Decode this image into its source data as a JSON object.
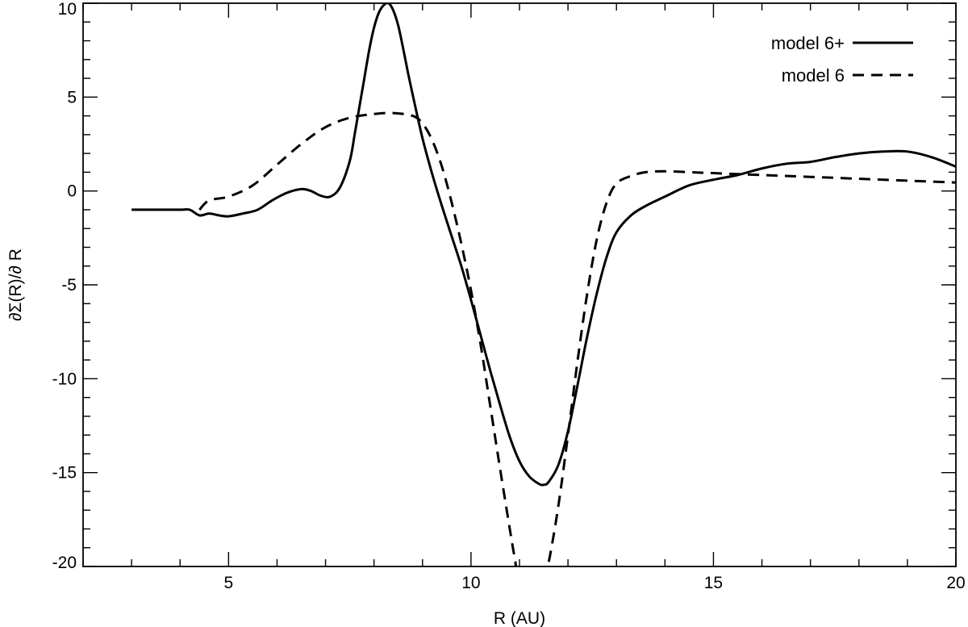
{
  "chart_data": {
    "type": "line",
    "xlabel": "R (AU)",
    "ylabel": "∂Σ(R)/∂ R",
    "xlim": [
      2,
      20
    ],
    "ylim": [
      -20,
      10
    ],
    "x_ticks": [
      5,
      10,
      15,
      20
    ],
    "y_ticks": [
      -20,
      -15,
      -10,
      -5,
      0,
      5,
      10
    ],
    "x_minor_step": 1,
    "y_minor_step": 1,
    "grid": false,
    "legend_position": "top-right",
    "series": [
      {
        "name": "model 6+",
        "style": "solid",
        "color": "#000000",
        "x": [
          3.0,
          3.5,
          4.0,
          4.2,
          4.4,
          4.6,
          4.8,
          5.0,
          5.3,
          5.6,
          5.9,
          6.2,
          6.5,
          6.7,
          6.9,
          7.1,
          7.3,
          7.5,
          7.6,
          7.7,
          7.8,
          7.9,
          8.0,
          8.1,
          8.2,
          8.3,
          8.4,
          8.5,
          8.6,
          8.7,
          8.8,
          9.0,
          9.2,
          9.4,
          9.6,
          9.8,
          10.0,
          10.2,
          10.4,
          10.6,
          10.8,
          11.0,
          11.2,
          11.4,
          11.5,
          11.6,
          11.8,
          12.0,
          12.2,
          12.4,
          12.6,
          12.8,
          13.0,
          13.3,
          13.6,
          14.0,
          14.5,
          15.0,
          15.5,
          16.0,
          16.5,
          17.0,
          17.5,
          18.0,
          18.5,
          19.0,
          19.5,
          20.0
        ],
        "y": [
          -1.0,
          -1.0,
          -1.0,
          -1.0,
          -1.3,
          -1.2,
          -1.3,
          -1.35,
          -1.2,
          -1.0,
          -0.5,
          -0.1,
          0.1,
          0.0,
          -0.25,
          -0.3,
          0.2,
          1.6,
          3.0,
          4.5,
          6.0,
          7.5,
          8.7,
          9.5,
          9.9,
          10.0,
          9.6,
          8.8,
          7.6,
          6.3,
          5.1,
          2.8,
          0.9,
          -0.8,
          -2.4,
          -4.0,
          -5.8,
          -7.7,
          -9.6,
          -11.4,
          -13.1,
          -14.4,
          -15.2,
          -15.6,
          -15.65,
          -15.5,
          -14.6,
          -12.8,
          -10.3,
          -7.7,
          -5.4,
          -3.5,
          -2.2,
          -1.3,
          -0.8,
          -0.3,
          0.3,
          0.6,
          0.85,
          1.2,
          1.45,
          1.55,
          1.8,
          2.0,
          2.1,
          2.1,
          1.8,
          1.3
        ]
      },
      {
        "name": "model 6",
        "style": "dashed",
        "color": "#000000",
        "x": [
          4.4,
          4.6,
          5.0,
          5.5,
          6.0,
          6.5,
          7.0,
          7.5,
          8.0,
          8.4,
          8.8,
          9.0,
          9.2,
          9.4,
          9.6,
          9.8,
          10.0,
          10.2,
          10.4,
          10.6,
          10.8,
          10.9,
          11.0,
          11.4,
          11.5,
          11.6,
          11.8,
          12.0,
          12.2,
          12.4,
          12.6,
          12.8,
          13.0,
          13.3,
          13.6,
          14.0,
          14.5,
          15.0,
          16.0,
          17.0,
          18.0,
          19.0,
          20.0
        ],
        "y": [
          -1.0,
          -0.5,
          -0.3,
          0.3,
          1.4,
          2.5,
          3.4,
          3.9,
          4.1,
          4.15,
          4.0,
          3.6,
          2.7,
          1.3,
          -0.6,
          -2.8,
          -5.3,
          -8.2,
          -11.5,
          -14.8,
          -18.0,
          -19.5,
          -20.5,
          -20.5,
          -20.5,
          -19.8,
          -16.8,
          -13.0,
          -9.0,
          -5.4,
          -2.5,
          -0.6,
          0.4,
          0.8,
          1.0,
          1.05,
          1.0,
          0.95,
          0.85,
          0.75,
          0.65,
          0.55,
          0.45
        ]
      }
    ]
  }
}
